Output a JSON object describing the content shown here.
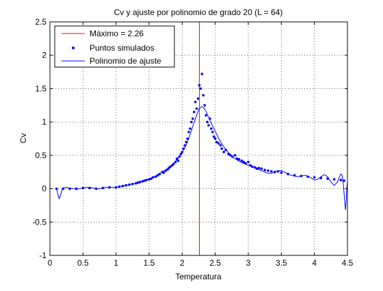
{
  "chart_data": {
    "type": "line",
    "title": "Cv y ajuste por polinomio de grado 20 (L = 64)",
    "xlabel": "Temperatura",
    "ylabel": "Cv",
    "xlim": [
      0,
      4.5
    ],
    "ylim": [
      -1,
      2.5
    ],
    "xticks": [
      0,
      0.5,
      1,
      1.5,
      2,
      2.5,
      3,
      3.5,
      4,
      4.5
    ],
    "xtick_labels": [
      "0",
      "0.5",
      "1",
      "1.5",
      "2",
      "2.5",
      "3",
      "3.5",
      "4",
      "4.5"
    ],
    "yticks": [
      -1,
      -0.5,
      0,
      0.5,
      1,
      1.5,
      2,
      2.5
    ],
    "ytick_labels": [
      "-1",
      "-0.5",
      "0",
      "0.5",
      "1",
      "1.5",
      "2",
      "2.5"
    ],
    "grid": true,
    "legend_position": "top-left",
    "maximum_line": {
      "x": 2.26,
      "label": "Máximo = 2.26",
      "color": "#ff0000"
    },
    "series": [
      {
        "name": "Puntos simulados",
        "kind": "scatter",
        "marker": "dot",
        "color": "#0000ff",
        "points": [
          [
            0.1,
            0.0
          ],
          [
            0.2,
            0.0
          ],
          [
            0.3,
            0.0
          ],
          [
            0.4,
            0.0
          ],
          [
            0.5,
            0.01
          ],
          [
            0.6,
            0.01
          ],
          [
            0.7,
            0.0
          ],
          [
            0.8,
            0.01
          ],
          [
            0.9,
            0.02
          ],
          [
            1.0,
            0.02
          ],
          [
            1.05,
            0.03
          ],
          [
            1.1,
            0.04
          ],
          [
            1.15,
            0.05
          ],
          [
            1.2,
            0.06
          ],
          [
            1.25,
            0.07
          ],
          [
            1.3,
            0.08
          ],
          [
            1.33,
            0.09
          ],
          [
            1.36,
            0.1
          ],
          [
            1.4,
            0.11
          ],
          [
            1.43,
            0.12
          ],
          [
            1.46,
            0.13
          ],
          [
            1.5,
            0.14
          ],
          [
            1.53,
            0.15
          ],
          [
            1.56,
            0.17
          ],
          [
            1.6,
            0.18
          ],
          [
            1.63,
            0.2
          ],
          [
            1.66,
            0.22
          ],
          [
            1.7,
            0.25
          ],
          [
            1.72,
            0.24
          ],
          [
            1.75,
            0.27
          ],
          [
            1.78,
            0.29
          ],
          [
            1.8,
            0.31
          ],
          [
            1.82,
            0.33
          ],
          [
            1.85,
            0.35
          ],
          [
            1.87,
            0.37
          ],
          [
            1.9,
            0.4
          ],
          [
            1.92,
            0.45
          ],
          [
            1.94,
            0.42
          ],
          [
            1.96,
            0.48
          ],
          [
            1.98,
            0.52
          ],
          [
            2.0,
            0.55
          ],
          [
            2.02,
            0.6
          ],
          [
            2.04,
            0.65
          ],
          [
            2.06,
            0.7
          ],
          [
            2.08,
            0.75
          ],
          [
            2.1,
            0.85
          ],
          [
            2.12,
            0.9
          ],
          [
            2.14,
            1.0
          ],
          [
            2.16,
            1.05
          ],
          [
            2.18,
            1.15
          ],
          [
            2.2,
            1.3
          ],
          [
            2.22,
            1.2
          ],
          [
            2.24,
            1.35
          ],
          [
            2.26,
            1.55
          ],
          [
            2.28,
            1.5
          ],
          [
            2.3,
            1.72
          ],
          [
            2.32,
            1.4
          ],
          [
            2.34,
            1.25
          ],
          [
            2.36,
            1.1
          ],
          [
            2.38,
            1.0
          ],
          [
            2.4,
            0.95
          ],
          [
            2.42,
            1.05
          ],
          [
            2.44,
            0.9
          ],
          [
            2.46,
            0.85
          ],
          [
            2.48,
            0.78
          ],
          [
            2.5,
            0.75
          ],
          [
            2.52,
            0.7
          ],
          [
            2.55,
            0.68
          ],
          [
            2.58,
            0.65
          ],
          [
            2.6,
            0.6
          ],
          [
            2.63,
            0.55
          ],
          [
            2.66,
            0.58
          ],
          [
            2.7,
            0.52
          ],
          [
            2.73,
            0.5
          ],
          [
            2.76,
            0.48
          ],
          [
            2.8,
            0.5
          ],
          [
            2.83,
            0.45
          ],
          [
            2.86,
            0.44
          ],
          [
            2.9,
            0.42
          ],
          [
            2.93,
            0.4
          ],
          [
            2.96,
            0.38
          ],
          [
            3.0,
            0.4
          ],
          [
            3.03,
            0.35
          ],
          [
            3.06,
            0.33
          ],
          [
            3.1,
            0.32
          ],
          [
            3.13,
            0.3
          ],
          [
            3.16,
            0.31
          ],
          [
            3.2,
            0.3
          ],
          [
            3.25,
            0.28
          ],
          [
            3.3,
            0.27
          ],
          [
            3.35,
            0.26
          ],
          [
            3.4,
            0.25
          ],
          [
            3.45,
            0.26
          ],
          [
            3.5,
            0.24
          ],
          [
            3.6,
            0.22
          ],
          [
            3.7,
            0.2
          ],
          [
            3.8,
            0.19
          ],
          [
            3.9,
            0.18
          ],
          [
            4.0,
            0.17
          ],
          [
            4.1,
            0.16
          ],
          [
            4.2,
            0.15
          ],
          [
            4.3,
            0.14
          ],
          [
            4.4,
            0.13
          ],
          [
            4.45,
            0.12
          ]
        ]
      },
      {
        "name": "Polinomio de ajuste",
        "kind": "line",
        "color": "#0000ff",
        "points": [
          [
            0.1,
            0.0
          ],
          [
            0.12,
            -0.08
          ],
          [
            0.14,
            -0.15
          ],
          [
            0.16,
            -0.1
          ],
          [
            0.18,
            -0.03
          ],
          [
            0.2,
            0.01
          ],
          [
            0.25,
            0.02
          ],
          [
            0.3,
            0.01
          ],
          [
            0.35,
            0.0
          ],
          [
            0.4,
            -0.01
          ],
          [
            0.45,
            0.0
          ],
          [
            0.5,
            0.01
          ],
          [
            0.55,
            0.02
          ],
          [
            0.6,
            0.02
          ],
          [
            0.65,
            0.01
          ],
          [
            0.7,
            0.0
          ],
          [
            0.75,
            0.0
          ],
          [
            0.8,
            0.01
          ],
          [
            0.85,
            0.02
          ],
          [
            0.9,
            0.02
          ],
          [
            0.95,
            0.02
          ],
          [
            1.0,
            0.02
          ],
          [
            1.05,
            0.03
          ],
          [
            1.1,
            0.04
          ],
          [
            1.15,
            0.05
          ],
          [
            1.2,
            0.06
          ],
          [
            1.25,
            0.07
          ],
          [
            1.3,
            0.08
          ],
          [
            1.35,
            0.09
          ],
          [
            1.4,
            0.1
          ],
          [
            1.45,
            0.12
          ],
          [
            1.5,
            0.14
          ],
          [
            1.55,
            0.16
          ],
          [
            1.6,
            0.19
          ],
          [
            1.65,
            0.22
          ],
          [
            1.7,
            0.25
          ],
          [
            1.75,
            0.28
          ],
          [
            1.8,
            0.32
          ],
          [
            1.85,
            0.36
          ],
          [
            1.9,
            0.41
          ],
          [
            1.95,
            0.47
          ],
          [
            2.0,
            0.54
          ],
          [
            2.05,
            0.63
          ],
          [
            2.1,
            0.75
          ],
          [
            2.15,
            0.9
          ],
          [
            2.2,
            1.05
          ],
          [
            2.25,
            1.18
          ],
          [
            2.28,
            1.22
          ],
          [
            2.3,
            1.23
          ],
          [
            2.33,
            1.21
          ],
          [
            2.36,
            1.16
          ],
          [
            2.4,
            1.07
          ],
          [
            2.45,
            0.96
          ],
          [
            2.5,
            0.86
          ],
          [
            2.55,
            0.76
          ],
          [
            2.6,
            0.67
          ],
          [
            2.65,
            0.6
          ],
          [
            2.7,
            0.54
          ],
          [
            2.75,
            0.49
          ],
          [
            2.8,
            0.45
          ],
          [
            2.85,
            0.42
          ],
          [
            2.9,
            0.39
          ],
          [
            2.95,
            0.37
          ],
          [
            3.0,
            0.35
          ],
          [
            3.05,
            0.33
          ],
          [
            3.1,
            0.31
          ],
          [
            3.15,
            0.29
          ],
          [
            3.2,
            0.27
          ],
          [
            3.25,
            0.25
          ],
          [
            3.3,
            0.23
          ],
          [
            3.35,
            0.23
          ],
          [
            3.4,
            0.25
          ],
          [
            3.45,
            0.27
          ],
          [
            3.5,
            0.27
          ],
          [
            3.55,
            0.25
          ],
          [
            3.6,
            0.22
          ],
          [
            3.65,
            0.2
          ],
          [
            3.7,
            0.19
          ],
          [
            3.75,
            0.18
          ],
          [
            3.8,
            0.19
          ],
          [
            3.85,
            0.2
          ],
          [
            3.9,
            0.19
          ],
          [
            3.95,
            0.16
          ],
          [
            4.0,
            0.13
          ],
          [
            4.05,
            0.14
          ],
          [
            4.1,
            0.18
          ],
          [
            4.15,
            0.21
          ],
          [
            4.2,
            0.18
          ],
          [
            4.25,
            0.1
          ],
          [
            4.3,
            0.05
          ],
          [
            4.35,
            0.1
          ],
          [
            4.38,
            0.18
          ],
          [
            4.4,
            0.22
          ],
          [
            4.42,
            0.2
          ],
          [
            4.44,
            0.05
          ],
          [
            4.46,
            -0.2
          ],
          [
            4.47,
            -0.32
          ],
          [
            4.48,
            -0.2
          ],
          [
            4.49,
            0.0
          ],
          [
            4.5,
            0.1
          ]
        ]
      }
    ]
  }
}
